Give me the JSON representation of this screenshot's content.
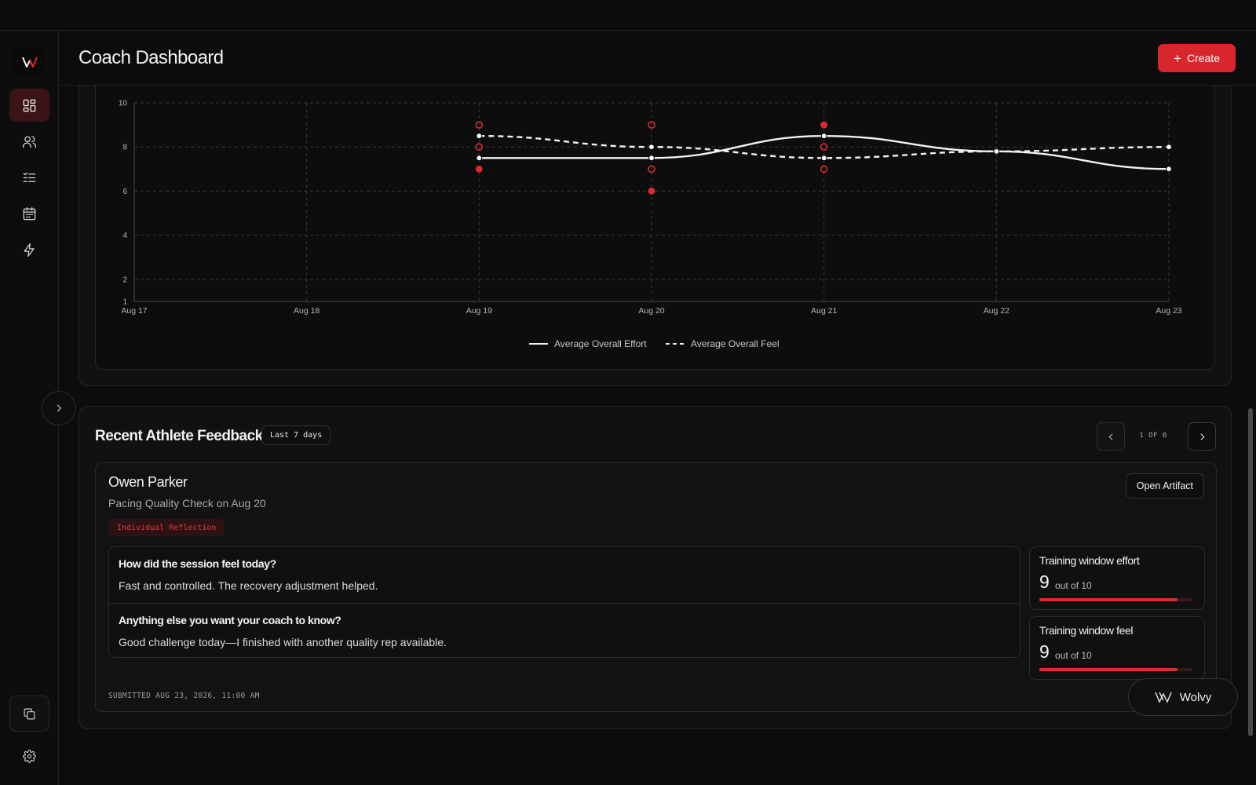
{
  "header": {
    "title": "Coach Dashboard",
    "create_label": "Create"
  },
  "sidebar": {
    "items": [
      {
        "icon": "dashboard-icon",
        "active": true
      },
      {
        "icon": "users-icon",
        "active": false
      },
      {
        "icon": "checklist-icon",
        "active": false
      },
      {
        "icon": "calendar-icon",
        "active": false
      },
      {
        "icon": "bolt-icon",
        "active": false
      }
    ],
    "bottom": [
      "copy-icon",
      "gear-icon"
    ]
  },
  "chart_data": {
    "type": "line",
    "x": [
      "Aug 17",
      "Aug 18",
      "Aug 19",
      "Aug 20",
      "Aug 21",
      "Aug 22",
      "Aug 23"
    ],
    "y_ticks": [
      1,
      2,
      4,
      6,
      8,
      10
    ],
    "ylim": [
      1,
      10
    ],
    "grid": true,
    "legend_position": "bottom",
    "series": [
      {
        "name": "Average Overall Effort",
        "style": "solid",
        "values": [
          null,
          null,
          7.5,
          7.5,
          8.5,
          7.8,
          7
        ]
      },
      {
        "name": "Average Overall Feel",
        "style": "dashed",
        "values": [
          null,
          null,
          8.5,
          8,
          7.5,
          7.8,
          8
        ]
      }
    ],
    "scatter_filled": [
      [
        2,
        7
      ],
      [
        3,
        6
      ],
      [
        4,
        9
      ]
    ],
    "scatter_hollow": [
      [
        2,
        9
      ],
      [
        2,
        8
      ],
      [
        3,
        9
      ],
      [
        3,
        7
      ],
      [
        4,
        8
      ],
      [
        4,
        7
      ]
    ],
    "accent": "#dc2a2f"
  },
  "feedback": {
    "title": "Recent Athlete Feedback",
    "range_badge": "Last 7 days",
    "pager": "1 OF 6",
    "card": {
      "athlete": "Owen Parker",
      "session": "Pacing Quality Check on Aug 20",
      "tag": "Individual Reflection",
      "open_label": "Open Artifact",
      "qa": [
        {
          "question": "How did the session feel today?",
          "answer": "Fast and controlled. The recovery adjustment helped."
        },
        {
          "question": "Anything else you want your coach to know?",
          "answer": "Good challenge today—I finished with another quality rep available."
        }
      ],
      "metrics": [
        {
          "label": "Training window effort",
          "value": "9",
          "unit": "out of 10",
          "fraction": 0.9
        },
        {
          "label": "Training window feel",
          "value": "9",
          "unit": "out of 10",
          "fraction": 0.9
        }
      ],
      "submitted": "SUBMITTED AUG 23, 2026, 11:00 AM"
    }
  },
  "assistant": {
    "label": "Wolvy"
  }
}
